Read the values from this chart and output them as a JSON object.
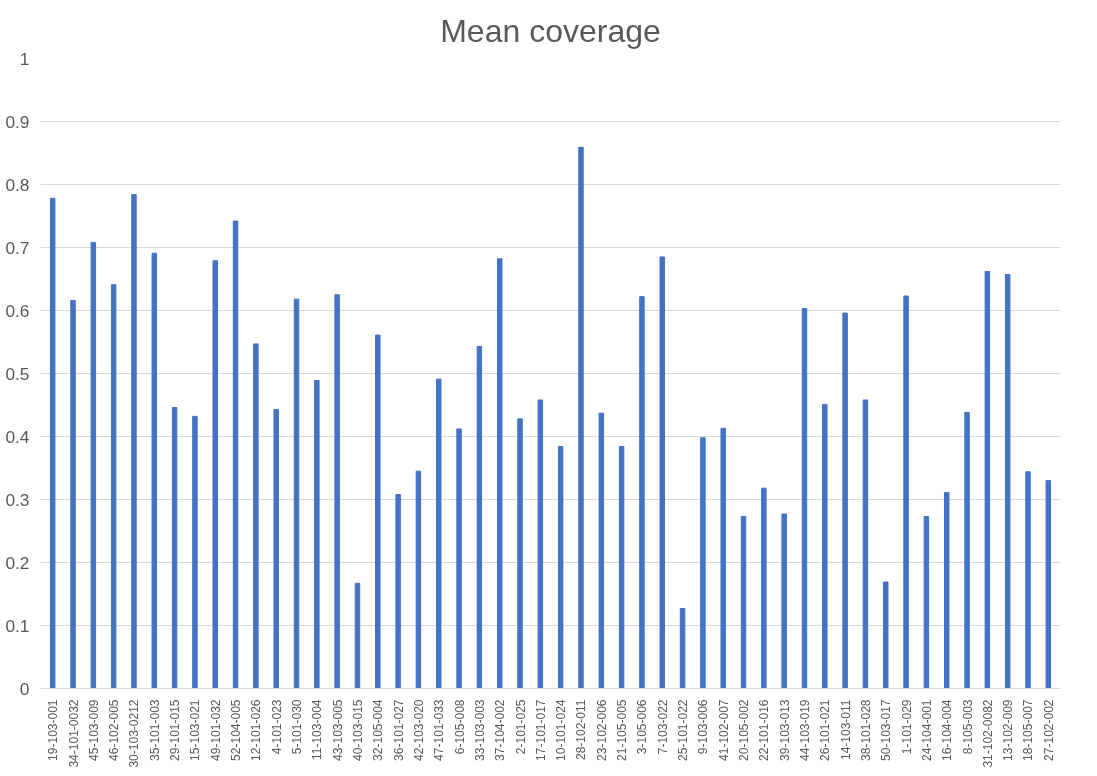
{
  "chart_data": {
    "type": "bar",
    "title": "Mean coverage",
    "categories": [
      "19-103-001",
      "34-101-0032",
      "45-103-009",
      "46-102-005",
      "30-103-0212",
      "35-101-003",
      "29-101-015",
      "15-103-021",
      "49-101-032",
      "52-104-005",
      "12-101-026",
      "4-101-023",
      "5-101-030",
      "11-103-004",
      "43-103-005",
      "40-103-015",
      "32-105-004",
      "36-101-027",
      "42-103-020",
      "47-101-033",
      "6-105-008",
      "33-103-003",
      "37-104-002",
      "2-101-025",
      "17-101-017",
      "10-101-024",
      "28-102-011",
      "23-102-006",
      "21-105-005",
      "3-105-006",
      "7-103-022",
      "25-101-022",
      "9-103-006",
      "41-102-007",
      "20-105-002",
      "22-101-016",
      "39-103-013",
      "44-103-019",
      "26-101-021",
      "14-103-011",
      "38-101-028",
      "50-103-017",
      "1-101-029",
      "24-104-001",
      "16-104-004",
      "8-105-003",
      "31-102-0082",
      "13-102-009",
      "18-105-007",
      "27-102-002"
    ],
    "values": [
      0.778,
      0.616,
      0.708,
      0.641,
      0.784,
      0.691,
      0.446,
      0.432,
      0.679,
      0.742,
      0.547,
      0.443,
      0.618,
      0.489,
      0.625,
      0.167,
      0.561,
      0.308,
      0.345,
      0.491,
      0.412,
      0.543,
      0.682,
      0.428,
      0.458,
      0.384,
      0.859,
      0.437,
      0.384,
      0.622,
      0.685,
      0.127,
      0.398,
      0.413,
      0.273,
      0.318,
      0.277,
      0.603,
      0.451,
      0.596,
      0.458,
      0.169,
      0.623,
      0.273,
      0.311,
      0.438,
      0.662,
      0.657,
      0.344,
      0.33
    ],
    "color": "#4472c4",
    "ylim": [
      0,
      1
    ],
    "yticks": [
      0,
      0.1,
      0.2,
      0.3,
      0.4,
      0.5,
      0.6,
      0.7,
      0.8,
      0.9,
      1
    ],
    "grid": "y"
  }
}
